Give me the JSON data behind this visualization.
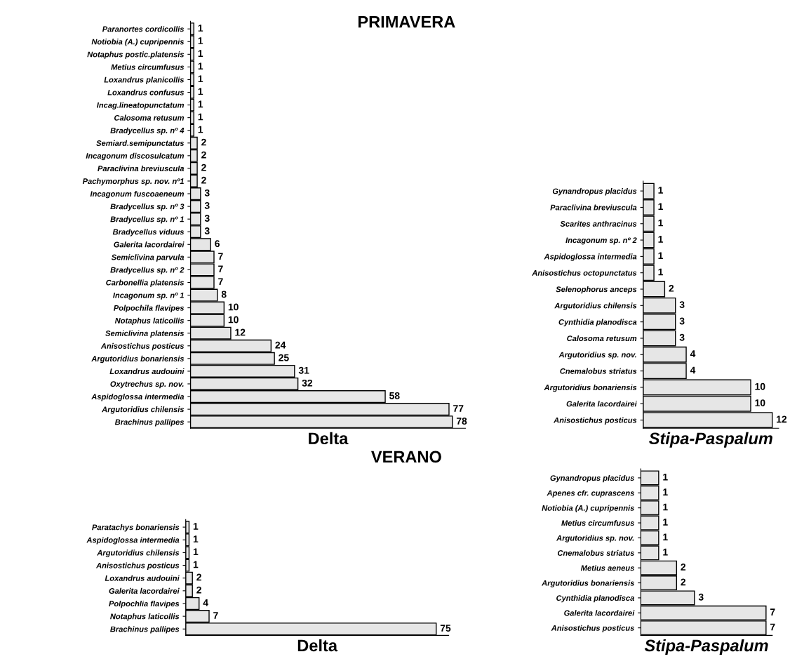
{
  "chart_data": [
    {
      "type": "bar",
      "orientation": "horizontal",
      "title": "PRIMAVERA",
      "xlabel": "Delta",
      "tick_labels": "y",
      "data_labels": true,
      "categories": [
        "Paranortes cordicollis",
        "Notiobia (A.) cupripennis",
        "Notaphus postic.platensis",
        "Metius circumfusus",
        "Loxandrus planicollis",
        "Loxandrus confusus",
        "Incag.lineatopunctatum",
        "Calosoma retusum",
        "Bradycellus sp. nº 4",
        "Semiard.semipunctatus",
        "Incagonum discosulcatum",
        "Paraclivina breviuscula",
        "Pachymorphus sp. nov. nº1",
        "Incagonum fuscoaeneum",
        "Bradycellus sp. nº 3",
        "Bradycellus sp. nº 1",
        "Bradycellus viduus",
        "Galerita lacordairei",
        "Semiclivina parvula",
        "Bradycellus sp. nº 2",
        "Carbonellia platensis",
        "Incagonum sp. nº 1",
        "Polpochila flavipes",
        "Notaphus laticollis",
        "Semiclivina platensis",
        "Anisostichus posticus",
        "Argutoridius bonariensis",
        "Loxandrus audouini",
        "Oxytrechus sp. nov.",
        "Aspidoglossa intermedia",
        "Argutoridius chilensis",
        "Brachinus pallipes"
      ],
      "values": [
        1,
        1,
        1,
        1,
        1,
        1,
        1,
        1,
        1,
        2,
        2,
        2,
        2,
        3,
        3,
        3,
        3,
        6,
        7,
        7,
        7,
        8,
        10,
        10,
        12,
        24,
        25,
        31,
        32,
        58,
        77,
        78
      ],
      "color": "#e6e6e6"
    },
    {
      "type": "bar",
      "orientation": "horizontal",
      "xlabel": "Stipa-Paspalum",
      "tick_labels": "y",
      "data_labels": true,
      "categories": [
        "Gynandropus placidus",
        "Paraclivina breviuscula",
        "Scarites anthracinus",
        "Incagonum sp. nº 2",
        "Aspidoglossa intermedia",
        "Anisostichus octopunctatus",
        "Selenophorus anceps",
        "Argutoridius chilensis",
        "Cynthidia planodisca",
        "Calosoma retusum",
        "Argutoridius sp. nov.",
        "Cnemalobus striatus",
        "Argutoridius bonariensis",
        "Galerita lacordairei",
        "Anisostichus posticus"
      ],
      "values": [
        1,
        1,
        1,
        1,
        1,
        1,
        2,
        3,
        3,
        3,
        4,
        4,
        10,
        10,
        12
      ],
      "color": "#e6e6e6"
    },
    {
      "type": "bar",
      "orientation": "horizontal",
      "title": "VERANO",
      "xlabel": "Delta",
      "tick_labels": "y",
      "data_labels": true,
      "categories": [
        "Paratachys bonariensis",
        "Aspidoglossa intermedia",
        "Argutoridius chilensis",
        "Anisostichus posticus",
        "Loxandrus audouini",
        "Galerita lacordairei",
        "Polpochlia flavipes",
        "Notaphus laticollis",
        "Brachinus pallipes"
      ],
      "values": [
        1,
        1,
        1,
        1,
        2,
        2,
        4,
        7,
        75
      ],
      "color": "#e6e6e6"
    },
    {
      "type": "bar",
      "orientation": "horizontal",
      "xlabel": "Stipa-Paspalum",
      "tick_labels": "y",
      "data_labels": true,
      "categories": [
        "Gynandropus placidus",
        "Apenes cfr. cuprascens",
        "Notiobia (A.) cupripennis",
        "Metius circumfusus",
        "Argutoridius sp. nov.",
        "Cnemalobus striatus",
        "Metius aeneus",
        "Argutoridius bonariensis",
        "Cynthidia planodisca",
        "Galerita lacordairei",
        "Anisostichus posticus"
      ],
      "values": [
        1,
        1,
        1,
        1,
        1,
        1,
        2,
        2,
        3,
        7,
        7
      ],
      "color": "#e6e6e6"
    }
  ]
}
